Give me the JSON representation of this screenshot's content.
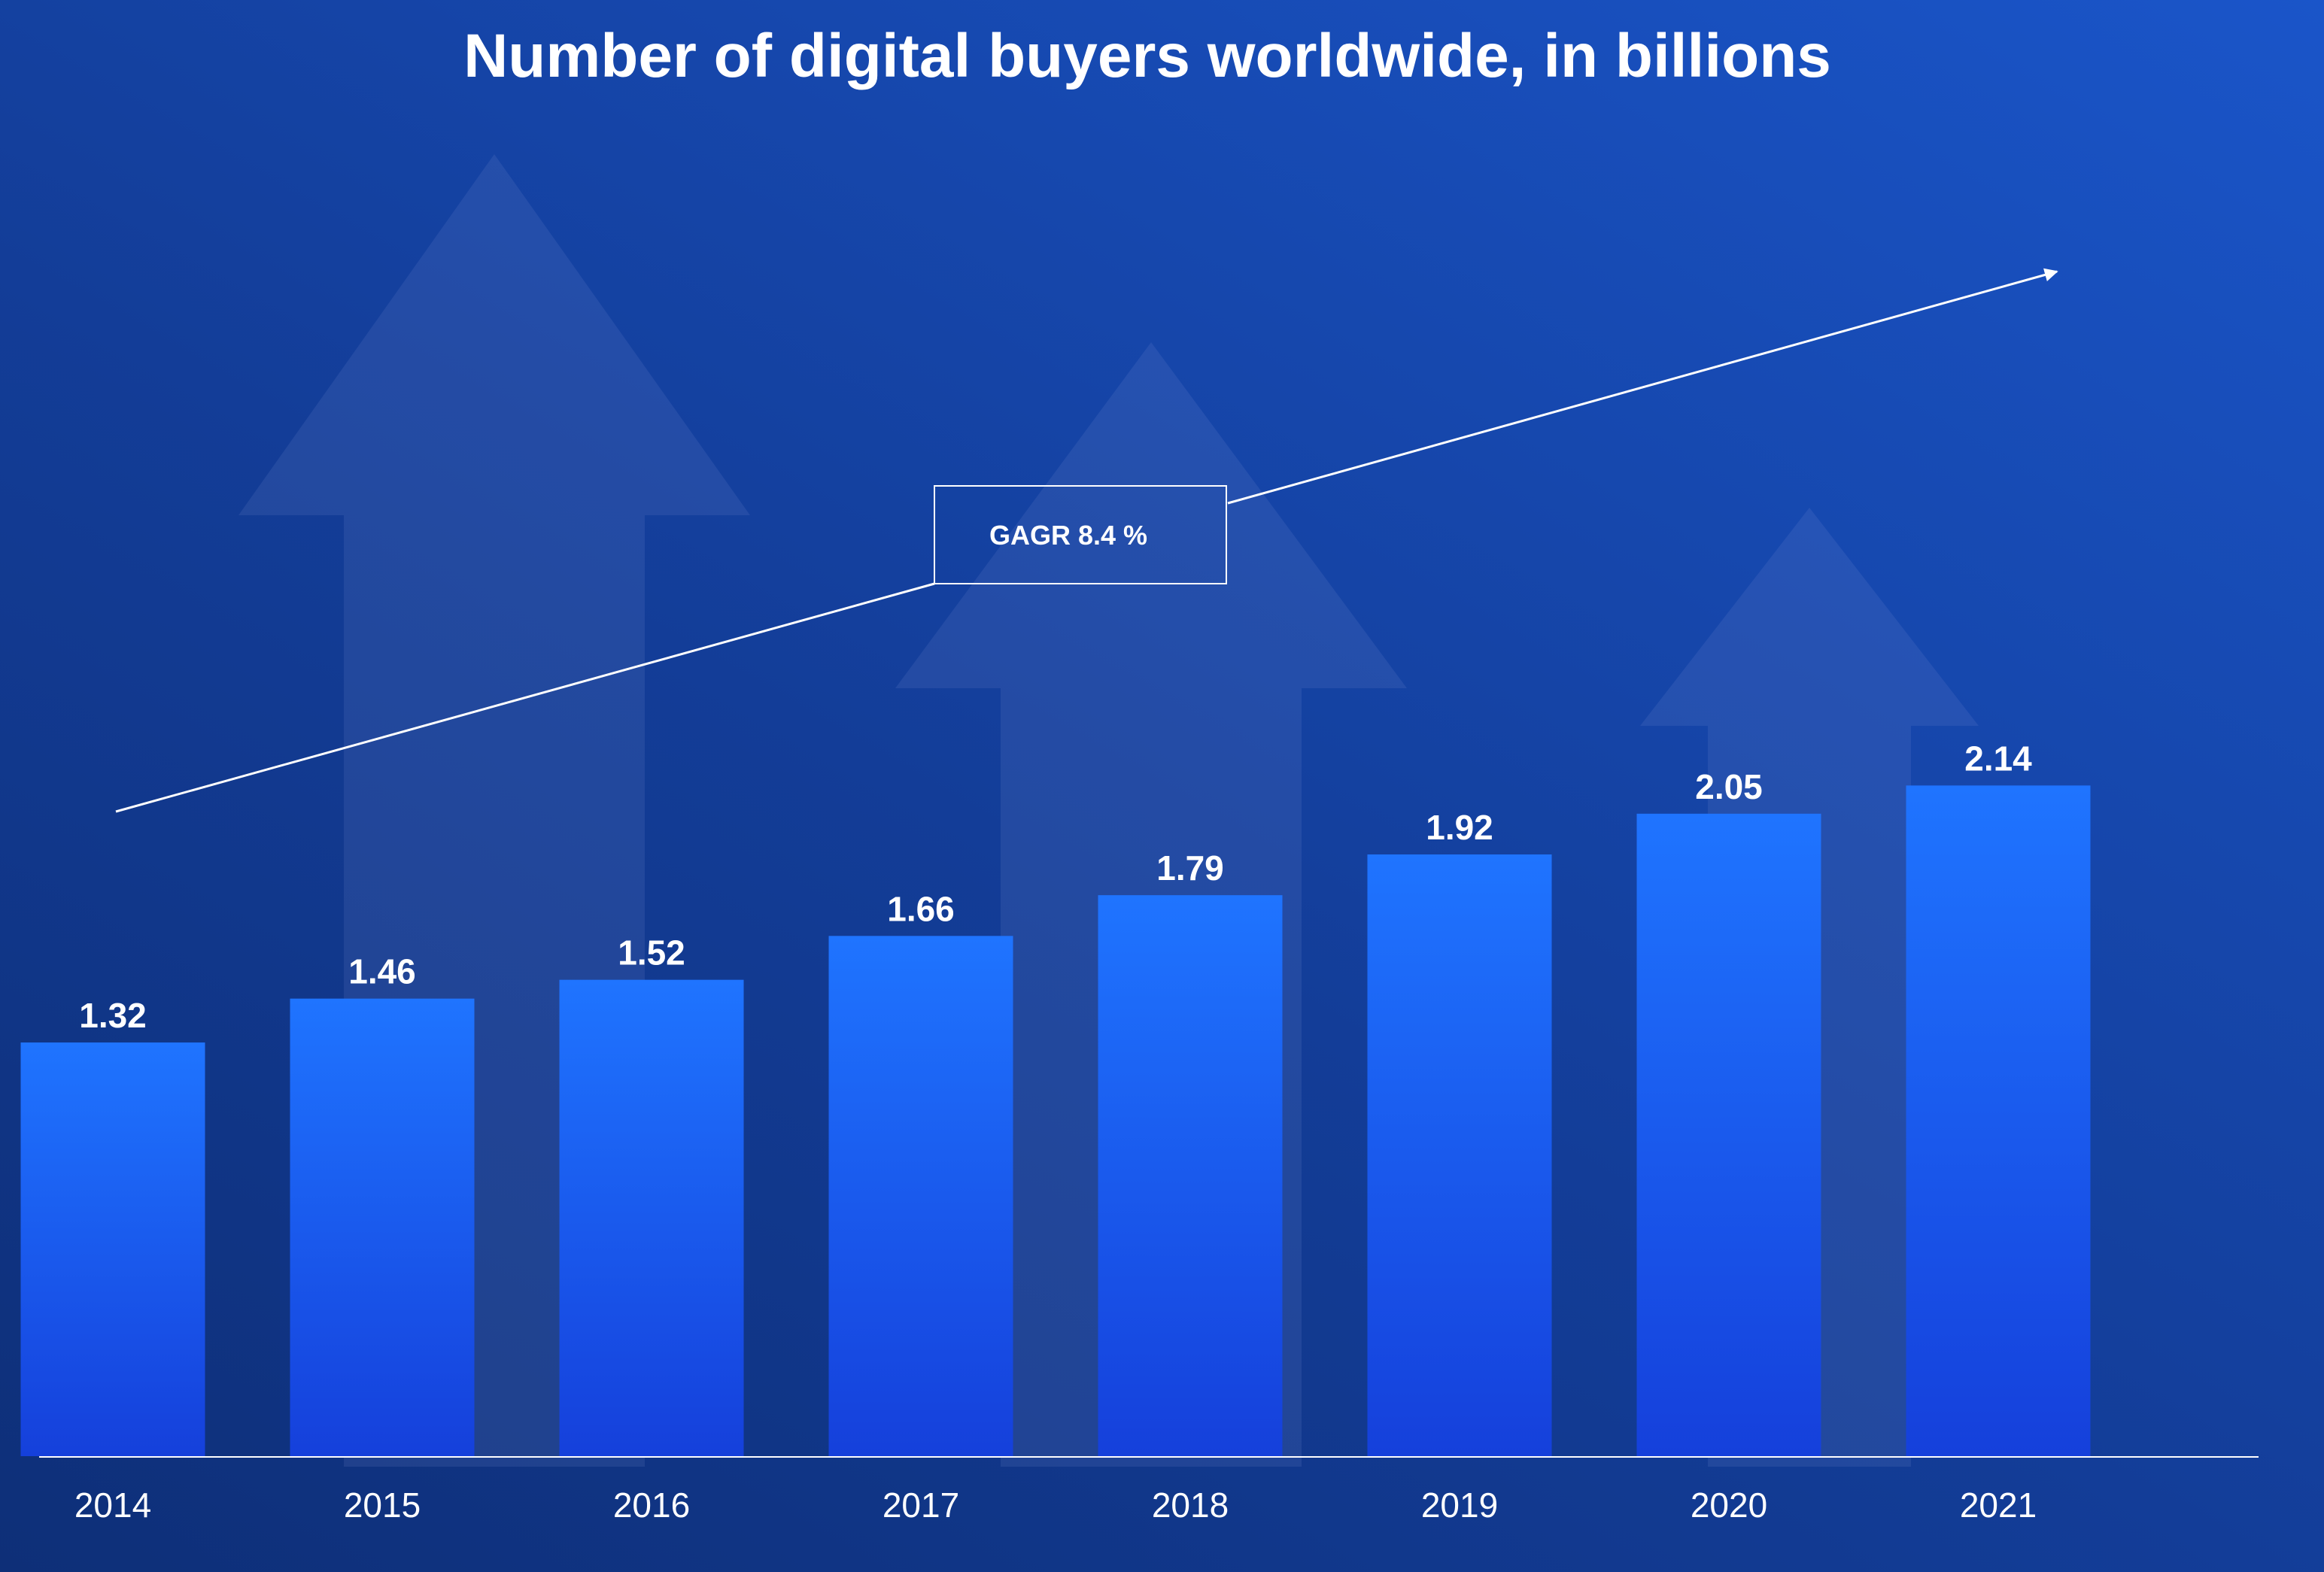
{
  "colors": {
    "background_dark": "#0e2f78",
    "background_light": "#1a55c9",
    "bar_top": "#1f74ff",
    "bar_bottom": "#1540db",
    "text": "#ffffff",
    "decor_arrow": "#5c78b8"
  },
  "annotation": {
    "cagr_label": "GAGR 8.4 %",
    "arrow_icon": "trend-arrow-icon"
  },
  "chart_data": {
    "type": "bar",
    "title": "Number of digital buyers worldwide, in billions",
    "xlabel": "",
    "ylabel": "",
    "ylim": [
      0,
      2.4
    ],
    "grid": false,
    "legend": "none",
    "categories": [
      "2014",
      "2015",
      "2016",
      "2017",
      "2018",
      "2019",
      "2020",
      "2021"
    ],
    "values": [
      1.32,
      1.46,
      1.52,
      1.66,
      1.79,
      1.92,
      2.05,
      2.14
    ],
    "value_labels": [
      "1.32",
      "1.46",
      "1.52",
      "1.66",
      "1.79",
      "1.92",
      "2.05",
      "2.14"
    ]
  }
}
